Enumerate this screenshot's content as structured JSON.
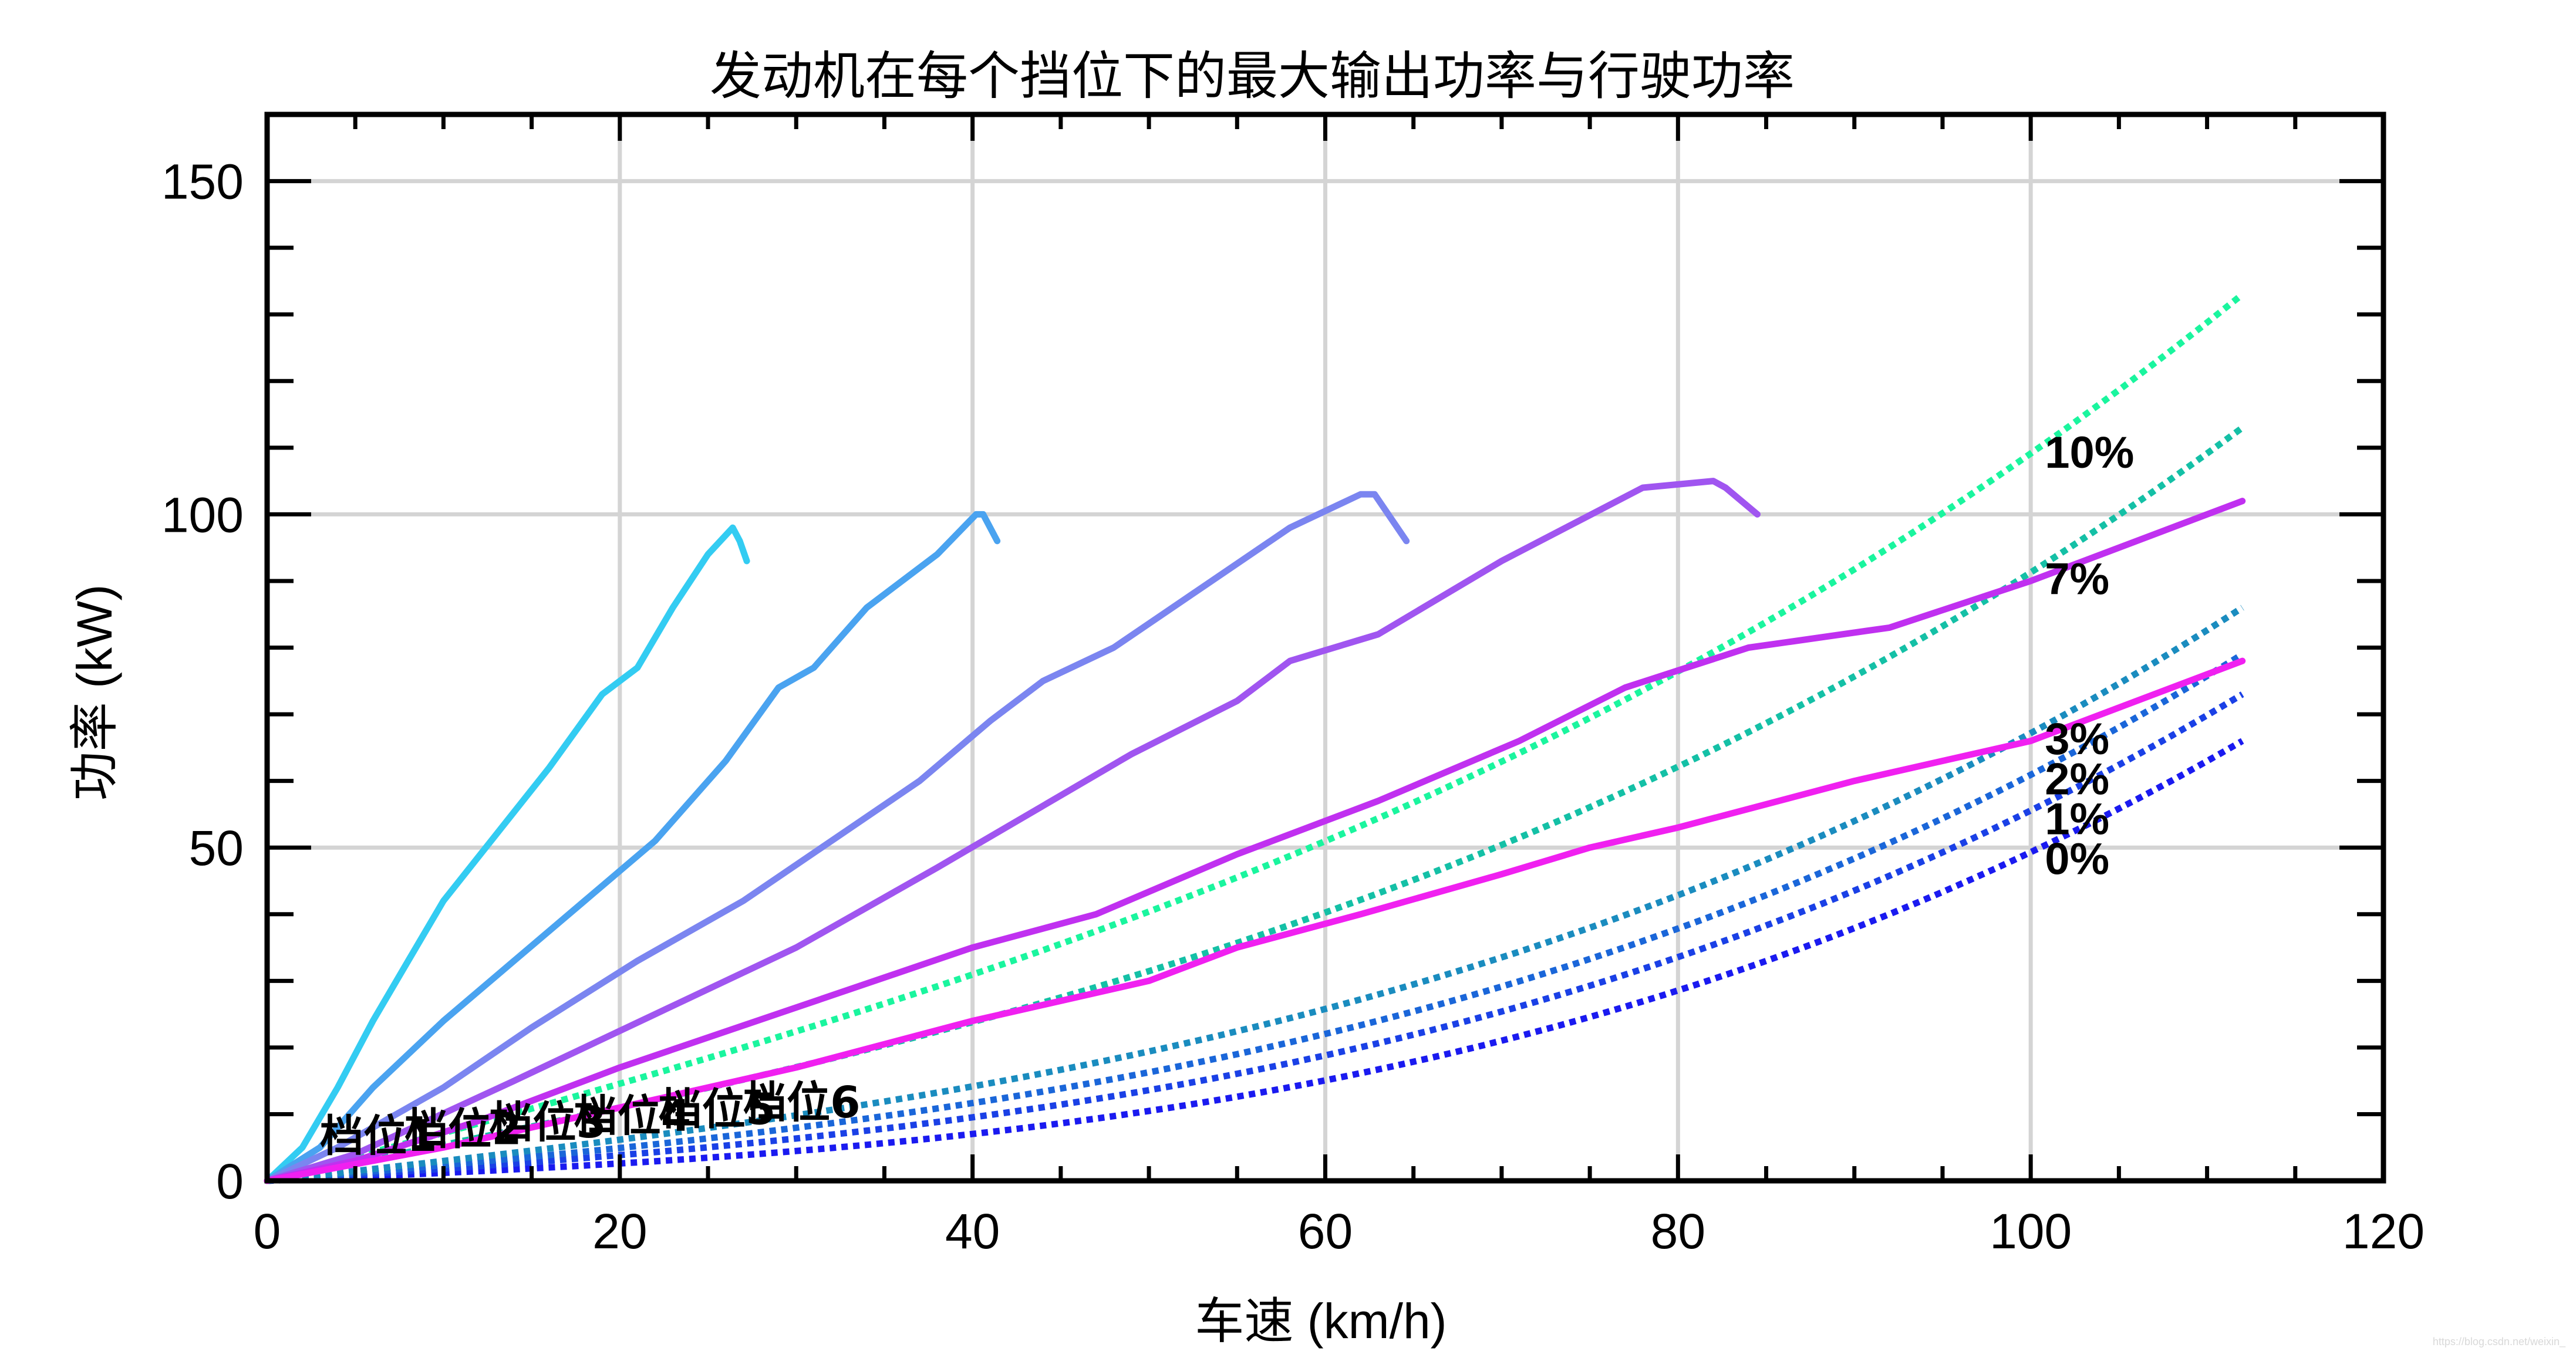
{
  "chart_data": {
    "type": "line",
    "title": "发动机在每个挡位下的最大输出功率与行驶功率",
    "xlabel": "车速 (km/h)",
    "ylabel": "功率 (kW)",
    "xlim": [
      0,
      120
    ],
    "ylim": [
      0,
      160
    ],
    "xticks": [
      0,
      20,
      40,
      60,
      80,
      100,
      120
    ],
    "yticks": [
      0,
      50,
      100,
      150
    ],
    "grid": true,
    "series": [
      {
        "name": "档位1",
        "kind": "gear",
        "color": "#33ccf2",
        "x": [
          0,
          2,
          4,
          6,
          8,
          10,
          13,
          16,
          19,
          21,
          23,
          25,
          26.4,
          26.8,
          27.2
        ],
        "y": [
          0,
          5,
          14,
          24,
          33,
          42,
          52,
          62,
          73,
          77,
          86,
          94,
          98,
          96,
          93
        ]
      },
      {
        "name": "档位2",
        "kind": "gear",
        "color": "#4aa3f0",
        "x": [
          0,
          3,
          6,
          10,
          14,
          18,
          22,
          26,
          29,
          31,
          34,
          38,
          40.2,
          40.6,
          41.4
        ],
        "y": [
          0,
          5,
          14,
          24,
          33,
          42,
          51,
          63,
          74,
          77,
          86,
          94,
          100,
          100,
          96
        ]
      },
      {
        "name": "档位3",
        "kind": "gear",
        "color": "#7b85f0",
        "x": [
          0,
          4,
          10,
          15,
          21,
          27,
          32,
          37,
          41,
          44,
          48,
          53,
          58,
          62,
          62.8,
          64.6
        ],
        "y": [
          0,
          5,
          14,
          23,
          33,
          42,
          51,
          60,
          69,
          75,
          80,
          89,
          98,
          103,
          103,
          96
        ]
      },
      {
        "name": "档位4",
        "kind": "gear",
        "color": "#a055f0",
        "x": [
          0,
          5,
          14,
          22,
          30,
          38,
          49,
          55,
          58,
          63,
          70,
          78,
          82,
          82.7,
          84.5
        ],
        "y": [
          0,
          4,
          15,
          25,
          35,
          47,
          64,
          72,
          78,
          82,
          93,
          104,
          105,
          104,
          100
        ]
      },
      {
        "name": "档位5",
        "kind": "gear",
        "color": "#c030f0",
        "x": [
          0,
          5,
          12,
          20,
          30,
          40,
          47,
          55,
          63,
          71,
          77,
          84,
          92,
          100,
          112
        ],
        "y": [
          0,
          3,
          9,
          17,
          26,
          35,
          40,
          49,
          57,
          66,
          74,
          80,
          83,
          90,
          102
        ]
      },
      {
        "name": "档位6",
        "kind": "gear",
        "color": "#f020f0",
        "x": [
          0,
          10,
          20,
          30,
          40,
          50,
          55,
          62,
          70,
          75,
          80,
          90,
          100,
          112
        ],
        "y": [
          0,
          5,
          11,
          17,
          24,
          30,
          35,
          40,
          46,
          50,
          53,
          60,
          66,
          78
        ]
      },
      {
        "name": "0%",
        "kind": "road",
        "color": "#1a1af0",
        "grade": 0,
        "y_end": 66,
        "power_coef": 3.78e-05
      },
      {
        "name": "1%",
        "kind": "road",
        "color": "#1a40e6",
        "grade": 1,
        "y_end": 73,
        "power_coef": 3.78e-05
      },
      {
        "name": "2%",
        "kind": "road",
        "color": "#1a66d9",
        "grade": 2,
        "y_end": 79,
        "power_coef": 3.78e-05
      },
      {
        "name": "3%",
        "kind": "road",
        "color": "#1a8cbf",
        "grade": 3,
        "y_end": 86,
        "power_coef": 3.78e-05
      },
      {
        "name": "7%",
        "kind": "road",
        "color": "#14c0a6",
        "grade": 7,
        "y_end": 113,
        "power_coef": 3.78e-05
      },
      {
        "name": "10%",
        "kind": "road",
        "color": "#1af59e",
        "grade": 10,
        "y_end": 133,
        "power_coef": 3.78e-05
      }
    ],
    "road_x_end": 112,
    "grade_labels": [
      {
        "text": "10%",
        "x": 100.8,
        "y": 107
      },
      {
        "text": "7%",
        "x": 100.8,
        "y": 88
      },
      {
        "text": "3%",
        "x": 100.8,
        "y": 64
      },
      {
        "text": "2%",
        "x": 100.8,
        "y": 58
      },
      {
        "text": "1%",
        "x": 100.8,
        "y": 52
      },
      {
        "text": "0%",
        "x": 100.8,
        "y": 46
      }
    ],
    "gear_labels": [
      {
        "text": "档位1",
        "x": 3.0,
        "y": 4.5
      },
      {
        "text": "档位2",
        "x": 7.8,
        "y": 5.5
      },
      {
        "text": "档位3",
        "x": 12.6,
        "y": 6.5
      },
      {
        "text": "档位4",
        "x": 17.4,
        "y": 7.5
      },
      {
        "text": "档位5",
        "x": 22.2,
        "y": 8.5
      },
      {
        "text": "档位6",
        "x": 27.0,
        "y": 9.5
      }
    ],
    "watermark": "https://blog.csdn.net/weixin_"
  }
}
